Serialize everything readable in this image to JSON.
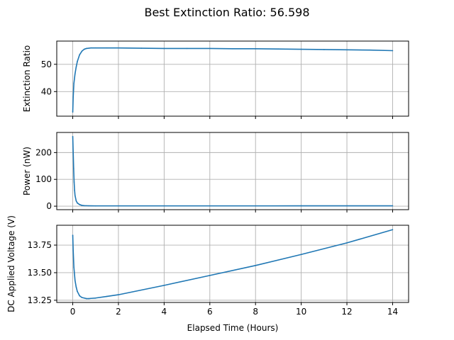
{
  "figure": {
    "title": "Best Extinction Ratio: 56.598"
  },
  "chart_data": [
    {
      "type": "line",
      "ylabel": "Extinction Ratio",
      "xlabel": "",
      "xlim": [
        -0.7,
        14.7
      ],
      "ylim": [
        31,
        58.5
      ],
      "xticks": [
        0,
        2,
        4,
        6,
        8,
        10,
        12,
        14
      ],
      "yticks": [
        40,
        50
      ],
      "show_xtick_labels": false,
      "grid": true,
      "color": "#1f77b4",
      "series": [
        {
          "x": [
            0,
            0.02,
            0.05,
            0.1,
            0.15,
            0.2,
            0.3,
            0.4,
            0.5,
            0.6,
            0.8,
            1.0,
            1.5,
            2,
            3,
            4,
            5,
            6,
            7,
            8,
            9,
            10,
            11,
            12,
            13,
            14
          ],
          "y": [
            32.5,
            38,
            43,
            46.5,
            49,
            51,
            53.5,
            54.8,
            55.5,
            55.8,
            56,
            56,
            56,
            56,
            55.9,
            55.8,
            55.8,
            55.8,
            55.7,
            55.7,
            55.6,
            55.5,
            55.4,
            55.3,
            55.2,
            55.0
          ]
        }
      ]
    },
    {
      "type": "line",
      "ylabel": "Power (nW)",
      "xlabel": "",
      "xlim": [
        -0.7,
        14.7
      ],
      "ylim": [
        -13,
        275
      ],
      "xticks": [
        0,
        2,
        4,
        6,
        8,
        10,
        12,
        14
      ],
      "yticks": [
        0,
        100,
        200
      ],
      "show_xtick_labels": false,
      "grid": true,
      "color": "#1f77b4",
      "series": [
        {
          "x": [
            0,
            0.02,
            0.04,
            0.06,
            0.08,
            0.1,
            0.15,
            0.2,
            0.3,
            0.4,
            0.5,
            0.7,
            1,
            2,
            4,
            6,
            8,
            10,
            12,
            14
          ],
          "y": [
            260,
            200,
            140,
            90,
            60,
            40,
            20,
            12,
            6,
            3,
            2,
            1.5,
            1.2,
            1.2,
            1.2,
            1.2,
            1.2,
            1.3,
            1.3,
            1.4
          ]
        }
      ]
    },
    {
      "type": "line",
      "ylabel": "DC Applied Voltage (V)",
      "xlabel": "Elapsed Time (Hours)",
      "xlim": [
        -0.7,
        14.7
      ],
      "ylim": [
        13.23,
        13.93
      ],
      "xticks": [
        0,
        2,
        4,
        6,
        8,
        10,
        12,
        14
      ],
      "yticks": [
        13.25,
        13.5,
        13.75
      ],
      "ytick_labels": [
        "13.25",
        "13.50",
        "13.75"
      ],
      "show_xtick_labels": true,
      "grid": true,
      "color": "#1f77b4",
      "series": [
        {
          "x": [
            0,
            0.02,
            0.05,
            0.1,
            0.15,
            0.2,
            0.3,
            0.4,
            0.5,
            0.6,
            0.7,
            0.8,
            1.0,
            1.5,
            2,
            4,
            6,
            8,
            10,
            12,
            14
          ],
          "y": [
            13.84,
            13.7,
            13.55,
            13.43,
            13.37,
            13.33,
            13.29,
            13.275,
            13.27,
            13.265,
            13.265,
            13.267,
            13.27,
            13.285,
            13.3,
            13.385,
            13.475,
            13.565,
            13.665,
            13.77,
            13.89
          ]
        }
      ]
    }
  ]
}
